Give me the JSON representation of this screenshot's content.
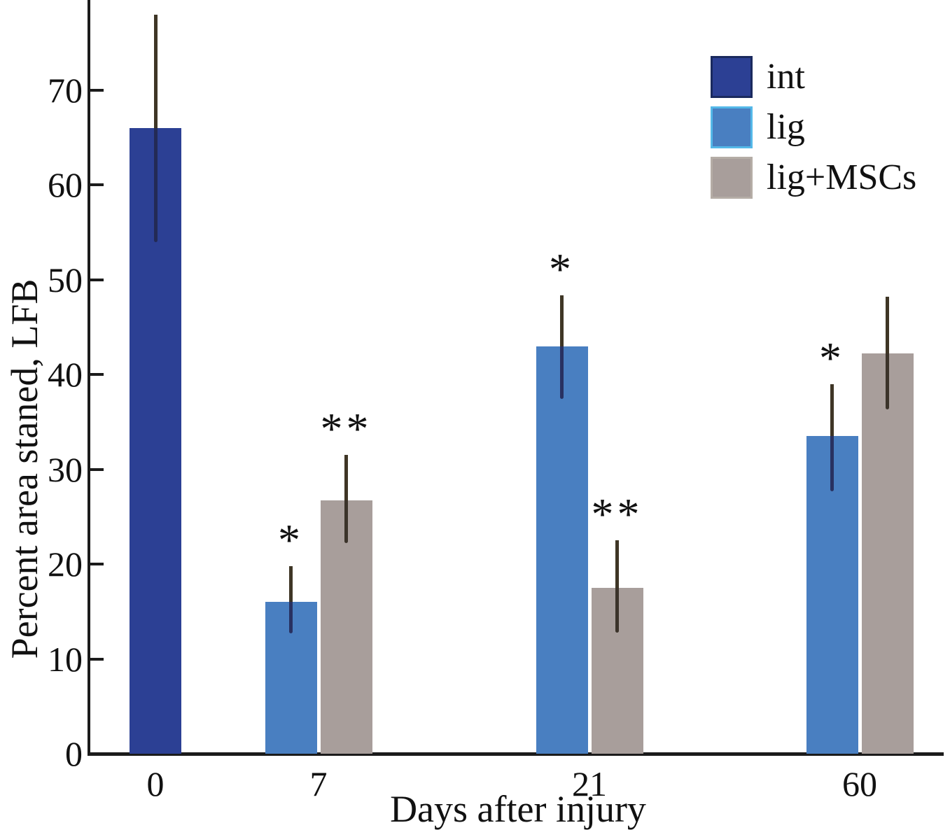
{
  "chart_data": {
    "type": "bar",
    "title": "",
    "xlabel": "Days after injury",
    "ylabel": "Percent area staned, LFB",
    "categories": [
      "0",
      "7",
      "21",
      "60"
    ],
    "ylim": [
      0,
      80
    ],
    "yticks": [
      0,
      10,
      20,
      30,
      40,
      50,
      60,
      70
    ],
    "grid": false,
    "legend_position": "upper right",
    "error_bar_color": "#3f3626",
    "legend": [
      {
        "label": "int",
        "color": "#2c4094",
        "border": "#1a2a5e"
      },
      {
        "label": "lig",
        "color": "#497fc1",
        "border": "#54b8e8"
      },
      {
        "label": "lig+MSCs",
        "color": "#a89e9b",
        "border": "#b5ada6"
      }
    ],
    "bars": [
      {
        "series": "int",
        "category": "0",
        "value": 66,
        "err_low": 54,
        "err_high": 78,
        "sig": ""
      },
      {
        "series": "lig",
        "category": "7",
        "value": 16,
        "err_low": 12.7,
        "err_high": 19.8,
        "sig": "*"
      },
      {
        "series": "lig+MSCs",
        "category": "7",
        "value": 26.7,
        "err_low": 22.2,
        "err_high": 31.5,
        "sig": "**"
      },
      {
        "series": "lig",
        "category": "21",
        "value": 43,
        "err_low": 37.4,
        "err_high": 48.4,
        "sig": "*"
      },
      {
        "series": "lig+MSCs",
        "category": "21",
        "value": 17.5,
        "err_low": 12.8,
        "err_high": 22.5,
        "sig": "**"
      },
      {
        "series": "lig",
        "category": "60",
        "value": 33.5,
        "err_low": 27.7,
        "err_high": 39.0,
        "sig": "*"
      },
      {
        "series": "lig+MSCs",
        "category": "60",
        "value": 42.2,
        "err_low": 36.3,
        "err_high": 48.2,
        "sig": ""
      }
    ]
  }
}
